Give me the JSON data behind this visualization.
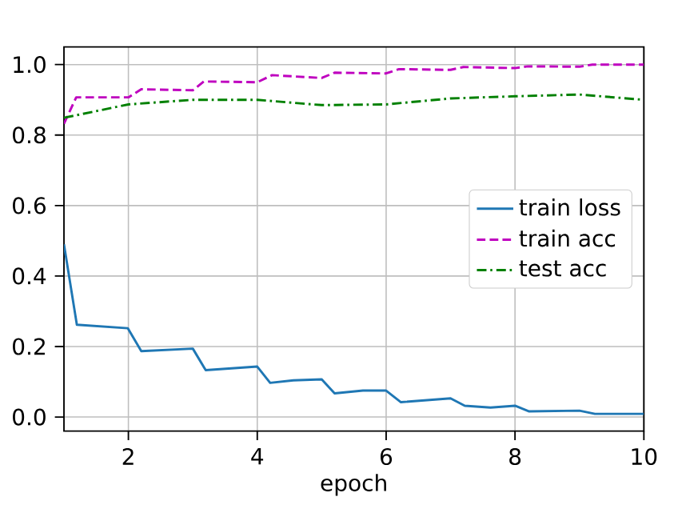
{
  "chart_data": {
    "type": "line",
    "xlabel": "epoch",
    "xlim": [
      1,
      10
    ],
    "ylim": [
      -0.04,
      1.05
    ],
    "xticks": [
      2,
      4,
      6,
      8,
      10
    ],
    "yticks": [
      {
        "value": 0,
        "label": "0.0"
      },
      {
        "value": 0.2,
        "label": "0.2"
      },
      {
        "value": 0.4,
        "label": "0.4"
      },
      {
        "value": 0.6,
        "label": "0.6"
      },
      {
        "value": 0.8,
        "label": "0.8"
      },
      {
        "value": 1,
        "label": "1.0"
      }
    ],
    "grid": true,
    "legend": "right",
    "series": [
      {
        "name": "train loss",
        "color": "#1f77b4",
        "line_style": "solid",
        "x": [
          1,
          1.2,
          1.99,
          2.2,
          3.0,
          3.2,
          4.0,
          4.2,
          4.56,
          5.0,
          5.2,
          5.64,
          6.0,
          6.23,
          7.0,
          7.22,
          7.62,
          8.0,
          8.22,
          9.0,
          9.24,
          10
        ],
        "values": [
          0.49,
          0.262,
          0.252,
          0.187,
          0.194,
          0.133,
          0.143,
          0.097,
          0.104,
          0.107,
          0.067,
          0.075,
          0.075,
          0.042,
          0.053,
          0.032,
          0.027,
          0.032,
          0.016,
          0.018,
          0.009,
          0.009
        ]
      },
      {
        "name": "train acc",
        "color": "#bf00bf",
        "line_style": "dashed",
        "x": [
          1,
          1.19,
          2.0,
          2.2,
          3.0,
          3.17,
          4.0,
          4.23,
          5.0,
          5.2,
          6.0,
          6.2,
          7.0,
          7.2,
          8.0,
          8.2,
          9.0,
          9.2,
          10
        ],
        "values": [
          0.832,
          0.907,
          0.907,
          0.93,
          0.927,
          0.952,
          0.95,
          0.97,
          0.962,
          0.977,
          0.975,
          0.987,
          0.985,
          0.993,
          0.99,
          0.995,
          0.994,
          1.0,
          1.0
        ]
      },
      {
        "name": "test acc",
        "color": "#008000",
        "line_style": "dashdot",
        "x": [
          1,
          2,
          3,
          4,
          5,
          6,
          7,
          8,
          9,
          10
        ],
        "values": [
          0.849,
          0.887,
          0.9,
          0.9,
          0.885,
          0.887,
          0.904,
          0.91,
          0.915,
          0.9
        ]
      }
    ]
  }
}
